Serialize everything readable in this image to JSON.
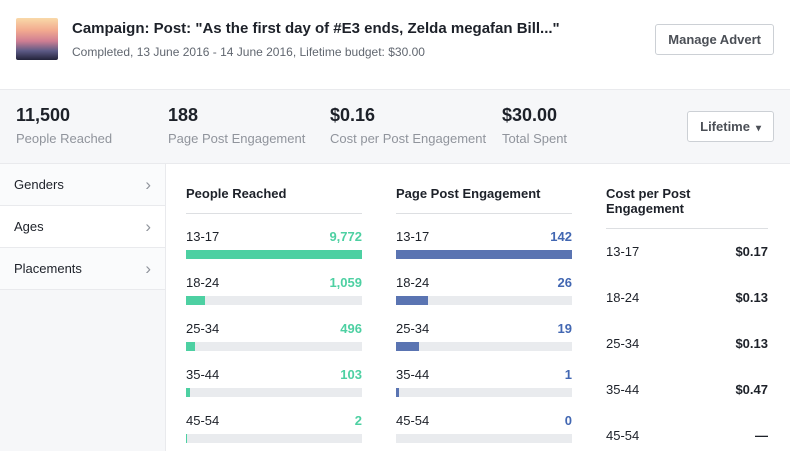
{
  "header": {
    "title": "Campaign: Post: \"As the first day of #E3 ends, Zelda megafan Bill...\"",
    "subtitle": "Completed, 13 June 2016 - 14 June 2016, Lifetime budget: $30.00",
    "manage_button": "Manage Advert"
  },
  "stats": [
    {
      "value": "11,500",
      "label": "People Reached"
    },
    {
      "value": "188",
      "label": "Page Post Engagement"
    },
    {
      "value": "$0.16",
      "label": "Cost per Post Engagement"
    },
    {
      "value": "$30.00",
      "label": "Total Spent"
    }
  ],
  "timeframe": {
    "label": "Lifetime",
    "caret": "▾"
  },
  "sidebar": {
    "items": [
      {
        "label": "Genders",
        "chevron": "›"
      },
      {
        "label": "Ages",
        "chevron": "›"
      },
      {
        "label": "Placements",
        "chevron": "›"
      }
    ]
  },
  "colors": {
    "green": "#4dd0a2",
    "blue": "#5a74b2",
    "blue_text": "#4267b2",
    "dark_text": "#1d2129",
    "bar_track": "#e9ebee"
  },
  "breakdown": {
    "columns": [
      {
        "title": "People Reached",
        "color": "#4dd0a2",
        "value_color": "#4dd0a2",
        "rows": [
          {
            "label": "13-17",
            "value": "9,772",
            "pct": 100
          },
          {
            "label": "18-24",
            "value": "1,059",
            "pct": 11
          },
          {
            "label": "25-34",
            "value": "496",
            "pct": 5
          },
          {
            "label": "35-44",
            "value": "103",
            "pct": 2
          },
          {
            "label": "45-54",
            "value": "2",
            "pct": 0.5
          }
        ]
      },
      {
        "title": "Page Post Engagement",
        "color": "#5a74b2",
        "value_color": "#4267b2",
        "rows": [
          {
            "label": "13-17",
            "value": "142",
            "pct": 100
          },
          {
            "label": "18-24",
            "value": "26",
            "pct": 18
          },
          {
            "label": "25-34",
            "value": "19",
            "pct": 13
          },
          {
            "label": "35-44",
            "value": "1",
            "pct": 1.5
          },
          {
            "label": "45-54",
            "value": "0",
            "pct": 0
          }
        ]
      },
      {
        "title": "Cost per Post Engagement",
        "color": "",
        "value_color": "#1d2129",
        "rows": [
          {
            "label": "13-17",
            "value": "$0.17"
          },
          {
            "label": "18-24",
            "value": "$0.13"
          },
          {
            "label": "25-34",
            "value": "$0.13"
          },
          {
            "label": "35-44",
            "value": "$0.47"
          },
          {
            "label": "45-54",
            "value": "—"
          }
        ]
      }
    ]
  },
  "chart_data": {
    "type": "bar",
    "orientation": "horizontal",
    "categories": [
      "13-17",
      "18-24",
      "25-34",
      "35-44",
      "45-54"
    ],
    "series": [
      {
        "name": "People Reached",
        "values": [
          9772,
          1059,
          496,
          103,
          2
        ]
      },
      {
        "name": "Page Post Engagement",
        "values": [
          142,
          26,
          19,
          1,
          0
        ]
      },
      {
        "name": "Cost per Post Engagement",
        "values": [
          0.17,
          0.13,
          0.13,
          0.47,
          null
        ]
      }
    ]
  }
}
